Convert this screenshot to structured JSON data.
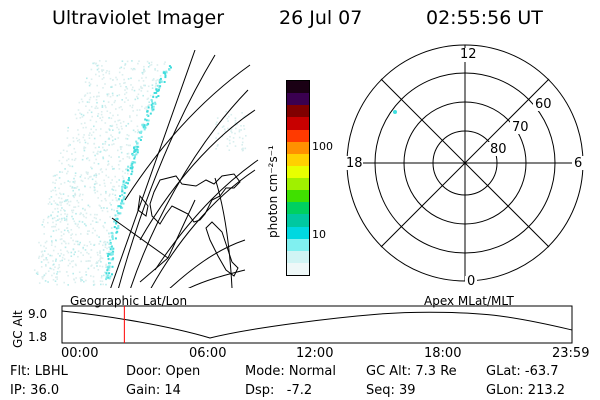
{
  "header": {
    "title": "Ultraviolet Imager",
    "date": "26 Jul 07",
    "time": "02:55:56 UT"
  },
  "colorbar": {
    "unit_label": "photon cm⁻²s⁻¹",
    "ticks": [
      "100",
      "10"
    ],
    "colors": [
      "#1a0014",
      "#3a0050",
      "#800000",
      "#c80000",
      "#ff3a00",
      "#ff9000",
      "#ffd000",
      "#e8ff00",
      "#a0f000",
      "#40e000",
      "#00d060",
      "#00c8a0",
      "#00d8e0",
      "#80f0f0",
      "#d0f4f4",
      "#eef8f8"
    ]
  },
  "polar_plot": {
    "mlt_labels": {
      "top": "12",
      "left": "18",
      "right": "6",
      "bottom": "0"
    },
    "lat_labels": [
      "60",
      "70",
      "80"
    ]
  },
  "timeline": {
    "y_label": "GC Alt",
    "y_ticks": [
      "9.0",
      "1.8"
    ],
    "left_title": "Geographic Lat/Lon",
    "right_title": "Apex MLat/MLT",
    "x_ticks": [
      "00:00",
      "06:00",
      "12:00",
      "18:00",
      "23:59"
    ],
    "current_marker_time": "02:55:56",
    "marker_color": "#ff0000"
  },
  "info": {
    "filter": "Flt: LBHL",
    "ip": "IP: 36.0",
    "door": "Door: Open",
    "gain": "Gain: 14",
    "mode": "Mode: Normal",
    "dsp": "Dsp:   -7.2",
    "gc_alt": "GC Alt: 7.3 Re",
    "seq": "Seq: 39",
    "glat": "GLat: -63.7",
    "glon": "GLon: 213.2"
  }
}
